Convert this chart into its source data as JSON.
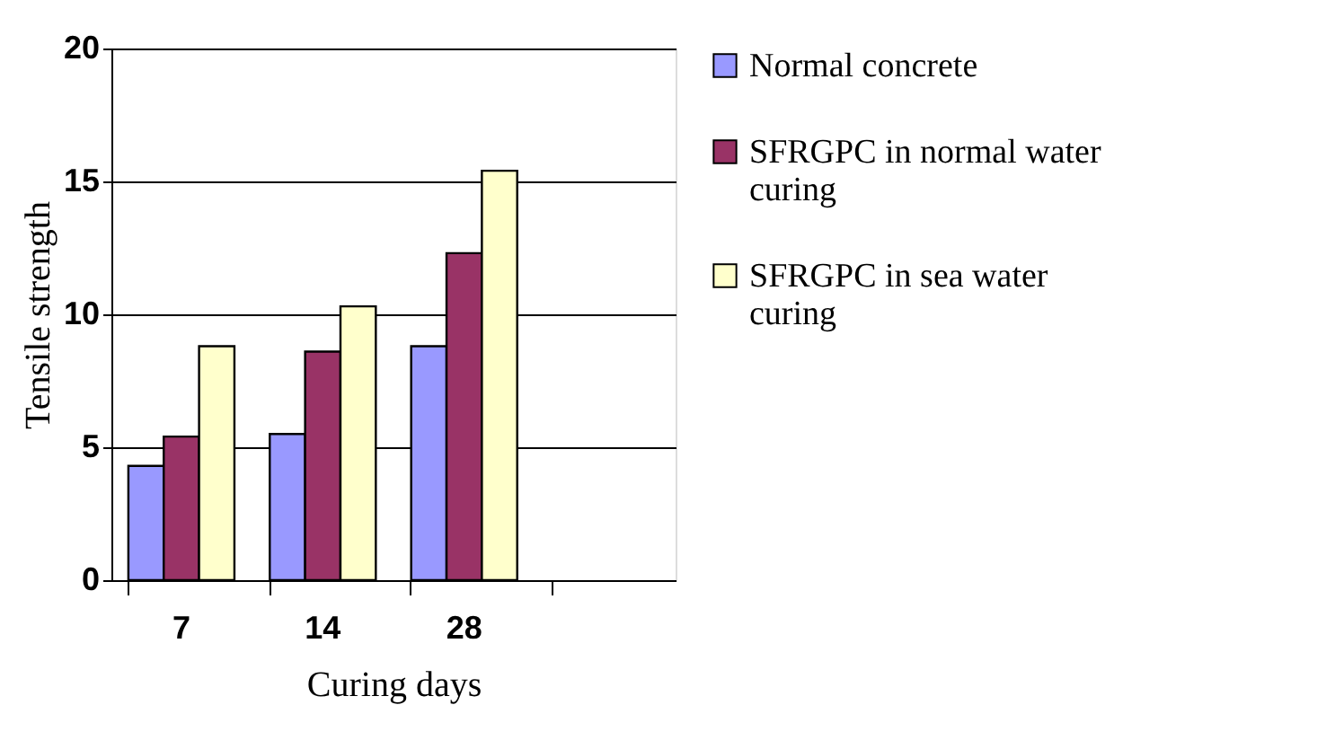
{
  "chart_data": {
    "type": "bar",
    "xlabel": "Curing days",
    "ylabel": "Tensile strength",
    "categories": [
      "7",
      "14",
      "28",
      null
    ],
    "series": [
      {
        "name": "Normal concrete",
        "color": "#9999ff",
        "values": [
          4.3,
          5.5,
          8.8,
          null
        ]
      },
      {
        "name": "SFRGPC in normal water curing",
        "color": "#993366",
        "values": [
          5.4,
          8.6,
          12.3,
          null
        ]
      },
      {
        "name": "SFRGPC in sea water curing",
        "color": "#ffffcc",
        "values": [
          8.8,
          10.3,
          15.4,
          null
        ]
      }
    ],
    "ylim": [
      0,
      20
    ],
    "yticks": [
      0,
      5,
      10,
      15,
      20
    ],
    "grid": "y",
    "legend": "right"
  }
}
